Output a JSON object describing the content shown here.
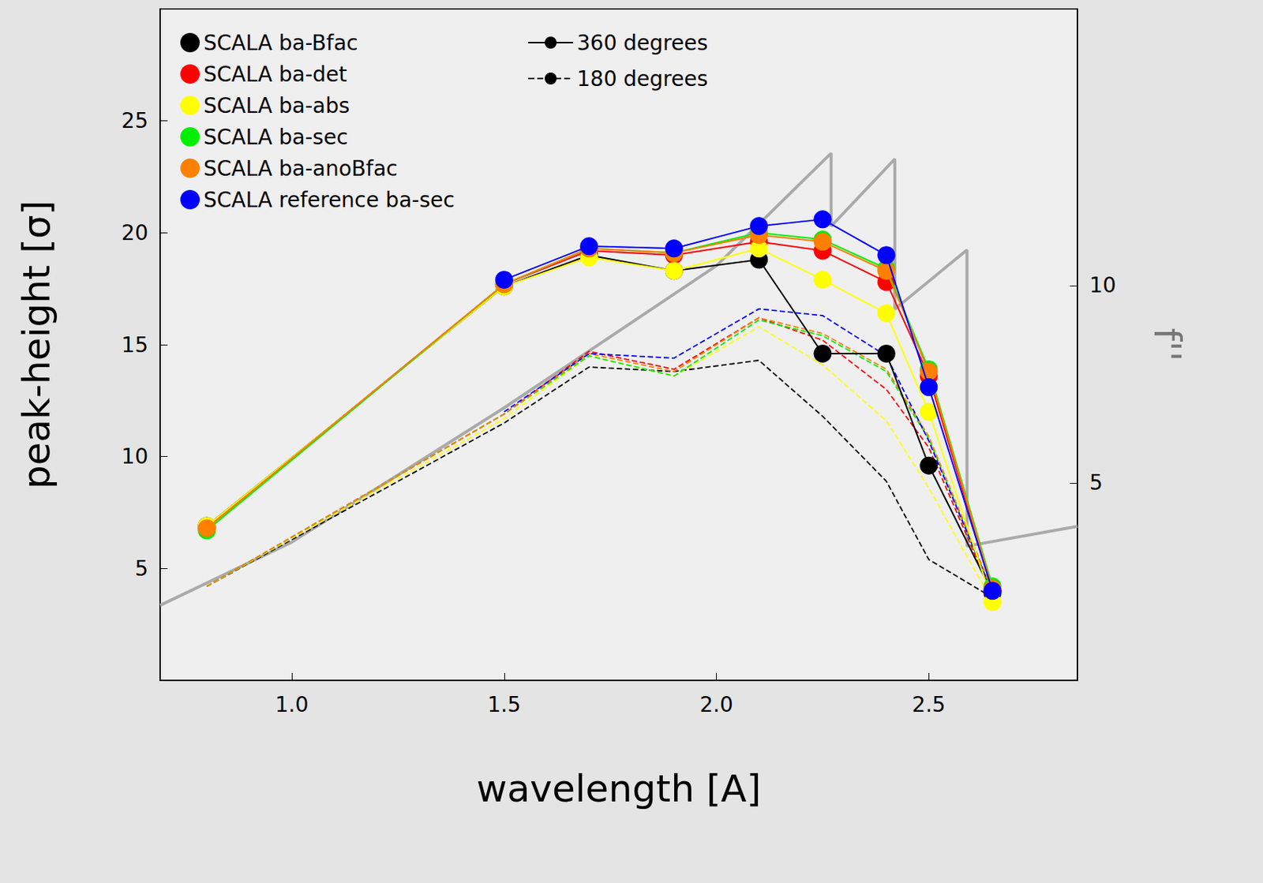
{
  "chart_data": {
    "type": "line",
    "x_label": "wavelength [A]",
    "y_label": "peak-height [σ]",
    "y2_label": "f''",
    "x": [
      0.8,
      1.5,
      1.7,
      1.9,
      2.1,
      2.25,
      2.4,
      2.5,
      2.65
    ],
    "xlim": [
      0.69,
      2.85
    ],
    "xticks": [
      {
        "value": 1.0,
        "label": "1.0"
      },
      1.5,
      {
        "value": 2.0,
        "label": "2.0"
      },
      2.5
    ],
    "ylim": [
      0,
      30
    ],
    "yticks": [
      5,
      10,
      15,
      20,
      25
    ],
    "y2lim": [
      0,
      17
    ],
    "y2ticks": [
      5,
      10
    ],
    "grid": false,
    "legend": "upper left",
    "series": [
      {
        "name": "SCALA ba-Bfac",
        "color": "#000000",
        "marker": "circle",
        "values": [
          6.9,
          17.6,
          19.0,
          18.3,
          18.8,
          14.6,
          14.6,
          9.6,
          3.9
        ],
        "values_180": [
          4.2,
          11.5,
          14.0,
          13.8,
          14.3,
          11.8,
          8.9,
          5.4,
          3.7
        ]
      },
      {
        "name": "SCALA ba-det",
        "color": "#ff0000",
        "marker": "circle",
        "values": [
          6.8,
          17.7,
          19.2,
          19.0,
          19.6,
          19.2,
          17.8,
          13.6,
          4.0
        ],
        "values_180": [
          4.2,
          11.9,
          14.7,
          13.9,
          16.2,
          15.2,
          13.0,
          10.4,
          3.8
        ]
      },
      {
        "name": "SCALA ba-abs",
        "color": "#ffff00",
        "marker": "circle",
        "values": [
          6.9,
          17.6,
          18.9,
          18.3,
          19.3,
          17.9,
          16.4,
          12.0,
          3.5
        ],
        "values_180": [
          4.2,
          11.7,
          14.5,
          13.6,
          15.8,
          14.1,
          11.6,
          8.6,
          3.5
        ]
      },
      {
        "name": "SCALA ba-sec",
        "color": "#00ee00",
        "marker": "circle",
        "values": [
          6.7,
          17.7,
          19.3,
          19.1,
          20.0,
          19.7,
          18.4,
          13.9,
          4.2
        ],
        "values_180": [
          4.2,
          11.9,
          14.5,
          13.6,
          16.1,
          15.4,
          13.8,
          10.8,
          3.9
        ]
      },
      {
        "name": "SCALA ba-anoBfac",
        "color": "#ff8000",
        "marker": "circle",
        "values": [
          6.8,
          17.7,
          19.3,
          19.1,
          19.9,
          19.6,
          18.3,
          13.8,
          4.1
        ],
        "values_180": [
          4.2,
          11.9,
          14.6,
          13.8,
          16.2,
          15.5,
          13.9,
          10.9,
          4.0
        ]
      },
      {
        "name": "SCALA reference ba-sec",
        "color": "#0000ff",
        "marker": "circle",
        "values": [
          null,
          17.9,
          19.4,
          19.3,
          20.3,
          20.6,
          19.0,
          13.1,
          4.0
        ],
        "values_180": [
          null,
          12.0,
          14.6,
          14.4,
          16.6,
          16.3,
          14.5,
          10.7,
          3.9
        ]
      }
    ],
    "line_styles": [
      {
        "name": "360 degrees",
        "line_style": "solid"
      },
      {
        "name": "180 degrees",
        "line_style": "dashed"
      }
    ],
    "y2_curve": {
      "color": "#aaaaaa",
      "axis": "y2",
      "x": [
        0.69,
        1.0,
        1.5,
        2.0,
        2.27,
        2.27,
        2.42,
        2.42,
        2.59,
        2.59,
        2.85
      ],
      "values": [
        1.9,
        3.5,
        6.9,
        10.5,
        13.35,
        11.5,
        13.2,
        9.4,
        10.9,
        3.4,
        3.9
      ]
    }
  }
}
